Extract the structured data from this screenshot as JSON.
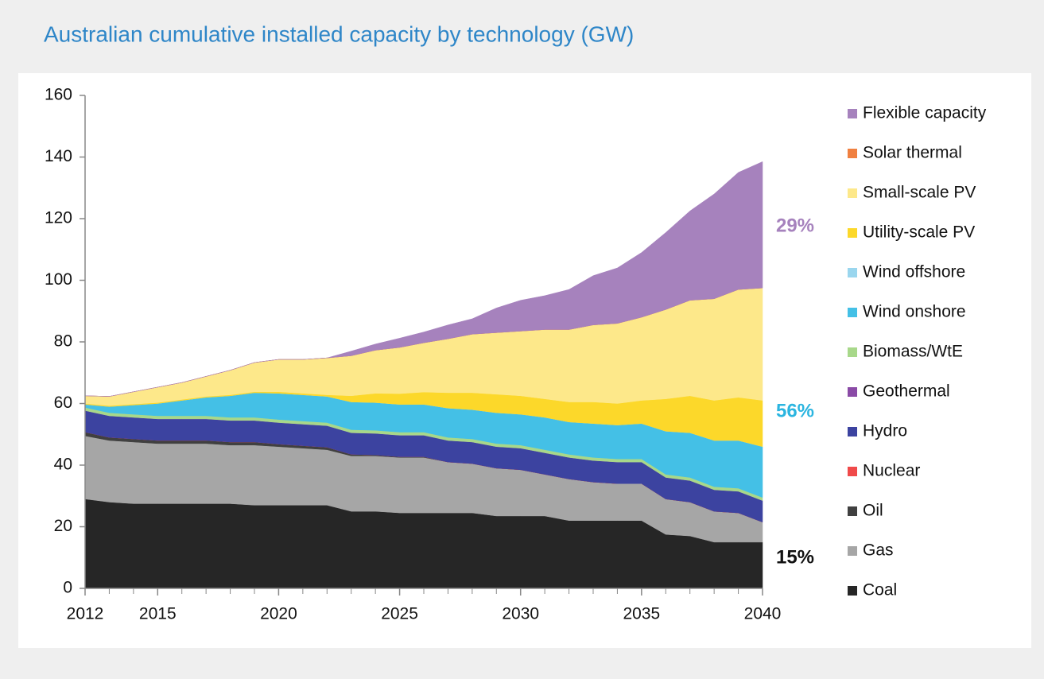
{
  "chart_data": {
    "type": "stacked_area",
    "title": "Australian cumulative installed capacity by technology (GW)",
    "x": [
      2012,
      2013,
      2014,
      2015,
      2016,
      2017,
      2018,
      2019,
      2020,
      2021,
      2022,
      2023,
      2024,
      2025,
      2026,
      2027,
      2028,
      2029,
      2030,
      2031,
      2032,
      2033,
      2034,
      2035,
      2036,
      2037,
      2038,
      2039,
      2040
    ],
    "xlim": [
      2012,
      2040
    ],
    "xticks": [
      2012,
      2015,
      2020,
      2025,
      2030,
      2035,
      2040
    ],
    "ylim": [
      0,
      160
    ],
    "yticks": [
      0,
      20,
      40,
      60,
      80,
      100,
      120,
      140,
      160
    ],
    "series": [
      {
        "name": "Coal",
        "color": "#262626",
        "values": [
          29,
          28,
          27.5,
          27.5,
          27.5,
          27.5,
          27.5,
          27,
          27,
          27,
          27,
          25,
          25,
          24.5,
          24.5,
          24.5,
          24.5,
          23.5,
          23.5,
          23.5,
          22,
          22,
          22,
          22,
          17.5,
          17,
          15,
          15,
          15
        ]
      },
      {
        "name": "Gas",
        "color": "#a6a6a6",
        "values": [
          20.5,
          20,
          20,
          19.5,
          19.5,
          19.5,
          19,
          19.5,
          19,
          18.5,
          18,
          18,
          18,
          18,
          18,
          16.5,
          16,
          15.5,
          15,
          13.5,
          13.5,
          12.5,
          12,
          12,
          11.5,
          11,
          10,
          9.5,
          6.5
        ]
      },
      {
        "name": "Oil",
        "color": "#404040",
        "values": [
          1.2,
          1,
          1,
          1,
          1,
          1,
          1,
          1,
          0.8,
          0.8,
          0.8,
          0.5,
          0.3,
          0.2,
          0.2,
          0,
          0,
          0,
          0,
          0,
          0,
          0,
          0,
          0,
          0,
          0,
          0,
          0,
          0
        ]
      },
      {
        "name": "Nuclear",
        "color": "#f04a4a",
        "values": [
          0,
          0,
          0,
          0,
          0,
          0,
          0,
          0,
          0,
          0,
          0,
          0,
          0,
          0,
          0,
          0,
          0,
          0,
          0,
          0,
          0,
          0,
          0,
          0,
          0,
          0,
          0,
          0,
          0
        ]
      },
      {
        "name": "Hydro",
        "color": "#3c43a0",
        "values": [
          7,
          7,
          7,
          7,
          7,
          7,
          7,
          7,
          7,
          7,
          7,
          7,
          7,
          7,
          7,
          7,
          7,
          7,
          7,
          7,
          7,
          7,
          7,
          7,
          7,
          7,
          7,
          7,
          7
        ]
      },
      {
        "name": "Geothermal",
        "color": "#8a4aa6",
        "values": [
          0,
          0,
          0,
          0,
          0,
          0,
          0,
          0,
          0,
          0,
          0,
          0,
          0,
          0,
          0,
          0,
          0,
          0,
          0,
          0,
          0,
          0,
          0,
          0,
          0,
          0,
          0,
          0,
          0
        ]
      },
      {
        "name": "Biomass/WtE",
        "color": "#a8d88a",
        "values": [
          1,
          1,
          1,
          1,
          1,
          1,
          1,
          1,
          1,
          1,
          1,
          1,
          1,
          1,
          1,
          1,
          1,
          1,
          1,
          1,
          1,
          1,
          1,
          1,
          1,
          1,
          1,
          1,
          1
        ]
      },
      {
        "name": "Wind onshore",
        "color": "#44c0e6",
        "values": [
          1,
          2,
          3,
          4,
          5,
          6,
          7,
          8,
          8.5,
          8.5,
          8.5,
          9,
          9,
          9,
          9,
          9.5,
          9.5,
          10,
          10,
          10.5,
          10.5,
          11,
          11,
          11.5,
          14,
          14.5,
          15,
          15.5,
          16.5
        ]
      },
      {
        "name": "Wind offshore",
        "color": "#9ad6ee",
        "values": [
          0,
          0,
          0,
          0,
          0,
          0,
          0,
          0,
          0,
          0,
          0,
          0,
          0,
          0,
          0,
          0,
          0,
          0,
          0,
          0,
          0,
          0,
          0,
          0,
          0,
          0,
          0,
          0,
          0
        ]
      },
      {
        "name": "Utility-scale PV",
        "color": "#fcd82a",
        "values": [
          0.3,
          0.3,
          0.3,
          0.3,
          0.3,
          0.3,
          0.3,
          0.3,
          0.5,
          0.5,
          0.5,
          2,
          3,
          3.5,
          4,
          5,
          5.5,
          6,
          6,
          6,
          6.5,
          7,
          7,
          7.5,
          10.5,
          12,
          13,
          14,
          15
        ]
      },
      {
        "name": "Small-scale PV",
        "color": "#fde88a",
        "values": [
          2.5,
          3,
          4,
          5,
          5.5,
          6.5,
          8,
          9.5,
          10.5,
          11,
          12,
          13,
          14,
          15,
          16,
          17.5,
          19,
          20,
          21,
          22.5,
          23.5,
          25,
          26,
          27,
          29,
          31,
          33,
          35,
          36.5
        ]
      },
      {
        "name": "Solar thermal",
        "color": "#f08040",
        "values": [
          0,
          0,
          0,
          0,
          0,
          0,
          0,
          0,
          0,
          0,
          0,
          0,
          0,
          0,
          0,
          0,
          0,
          0,
          0,
          0,
          0,
          0,
          0,
          0,
          0,
          0,
          0,
          0,
          0
        ]
      },
      {
        "name": "Flexible capacity",
        "color": "#a682bd",
        "values": [
          0,
          0,
          0,
          0,
          0,
          0,
          0,
          0,
          0,
          0,
          0,
          1.5,
          2,
          3,
          3.5,
          4.5,
          5,
          8,
          10,
          11,
          13,
          16,
          18,
          21,
          25,
          29,
          34,
          38,
          41
        ]
      }
    ],
    "annotations": [
      {
        "text": "29%",
        "color": "#a682bd"
      },
      {
        "text": "56%",
        "color": "#2bb5e0"
      },
      {
        "text": "15%",
        "color": "#111111"
      }
    ]
  }
}
